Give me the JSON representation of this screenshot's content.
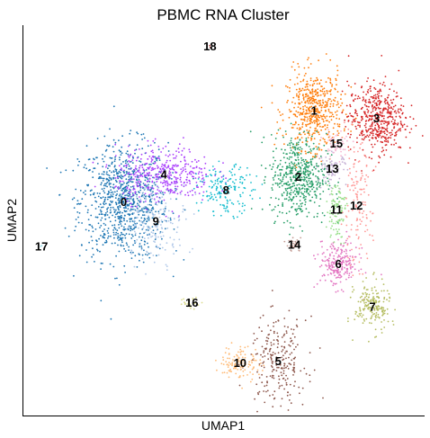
{
  "chart_data": {
    "type": "scatter",
    "title": "PBMC RNA Cluster",
    "xlabel": "UMAP1",
    "ylabel": "UMAP2",
    "xlim": [
      0,
      100
    ],
    "ylim": [
      0,
      100
    ],
    "grid": false,
    "legend": "on data",
    "clusters": [
      {
        "label": "0",
        "color": "#1f77b4",
        "x": 25.0,
        "y": 55.0,
        "sx": 5.5,
        "sy": 7.5,
        "n": 900
      },
      {
        "label": "1",
        "color": "#ff7f0e",
        "x": 72.5,
        "y": 78.5,
        "sx": 3.5,
        "sy": 5.0,
        "n": 520
      },
      {
        "label": "2",
        "color": "#279e68",
        "x": 68.5,
        "y": 61.5,
        "sx": 3.5,
        "sy": 5.5,
        "n": 520
      },
      {
        "label": "3",
        "color": "#d62728",
        "x": 88.0,
        "y": 76.5,
        "sx": 3.5,
        "sy": 4.5,
        "n": 480
      },
      {
        "label": "4",
        "color": "#aa40fc",
        "x": 35.0,
        "y": 62.0,
        "sx": 6.0,
        "sy": 3.5,
        "n": 420
      },
      {
        "label": "5",
        "color": "#8c564b",
        "x": 63.5,
        "y": 14.0,
        "sx": 3.5,
        "sy": 5.5,
        "n": 240
      },
      {
        "label": "6",
        "color": "#e377c2",
        "x": 78.5,
        "y": 39.0,
        "sx": 2.5,
        "sy": 3.0,
        "n": 220
      },
      {
        "label": "7",
        "color": "#b5bd61",
        "x": 87.0,
        "y": 28.0,
        "sx": 2.2,
        "sy": 3.2,
        "n": 190
      },
      {
        "label": "8",
        "color": "#17becf",
        "x": 50.5,
        "y": 58.0,
        "sx": 3.5,
        "sy": 3.0,
        "n": 170
      },
      {
        "label": "9",
        "color": "#aec7e8",
        "x": 33.0,
        "y": 50.0,
        "sx": 4.0,
        "sy": 5.0,
        "n": 170
      },
      {
        "label": "10",
        "color": "#ffbb78",
        "x": 54.0,
        "y": 13.5,
        "sx": 2.5,
        "sy": 2.2,
        "n": 120
      },
      {
        "label": "11",
        "color": "#98df8a",
        "x": 78.0,
        "y": 53.0,
        "sx": 1.2,
        "sy": 4.0,
        "n": 100
      },
      {
        "label": "12",
        "color": "#ff9896",
        "x": 83.0,
        "y": 54.0,
        "sx": 2.0,
        "sy": 7.5,
        "n": 140
      },
      {
        "label": "13",
        "color": "#c5b0d5",
        "x": 77.0,
        "y": 63.5,
        "sx": 1.8,
        "sy": 2.0,
        "n": 70
      },
      {
        "label": "14",
        "color": "#c49c94",
        "x": 67.5,
        "y": 44.0,
        "sx": 1.0,
        "sy": 1.0,
        "n": 25
      },
      {
        "label": "15",
        "color": "#f7b6d2",
        "x": 78.0,
        "y": 70.0,
        "sx": 2.0,
        "sy": 1.8,
        "n": 55
      },
      {
        "label": "16",
        "color": "#dbdb8d",
        "x": 42.0,
        "y": 29.0,
        "sx": 1.5,
        "sy": 0.8,
        "n": 28
      },
      {
        "label": "17",
        "color": "#9edae5",
        "x": 4.5,
        "y": 43.5,
        "sx": 0.2,
        "sy": 0.2,
        "n": 2
      },
      {
        "label": "18",
        "color": "#ad494a",
        "x": 46.5,
        "y": 95.0,
        "sx": 0.2,
        "sy": 0.2,
        "n": 2
      }
    ]
  }
}
